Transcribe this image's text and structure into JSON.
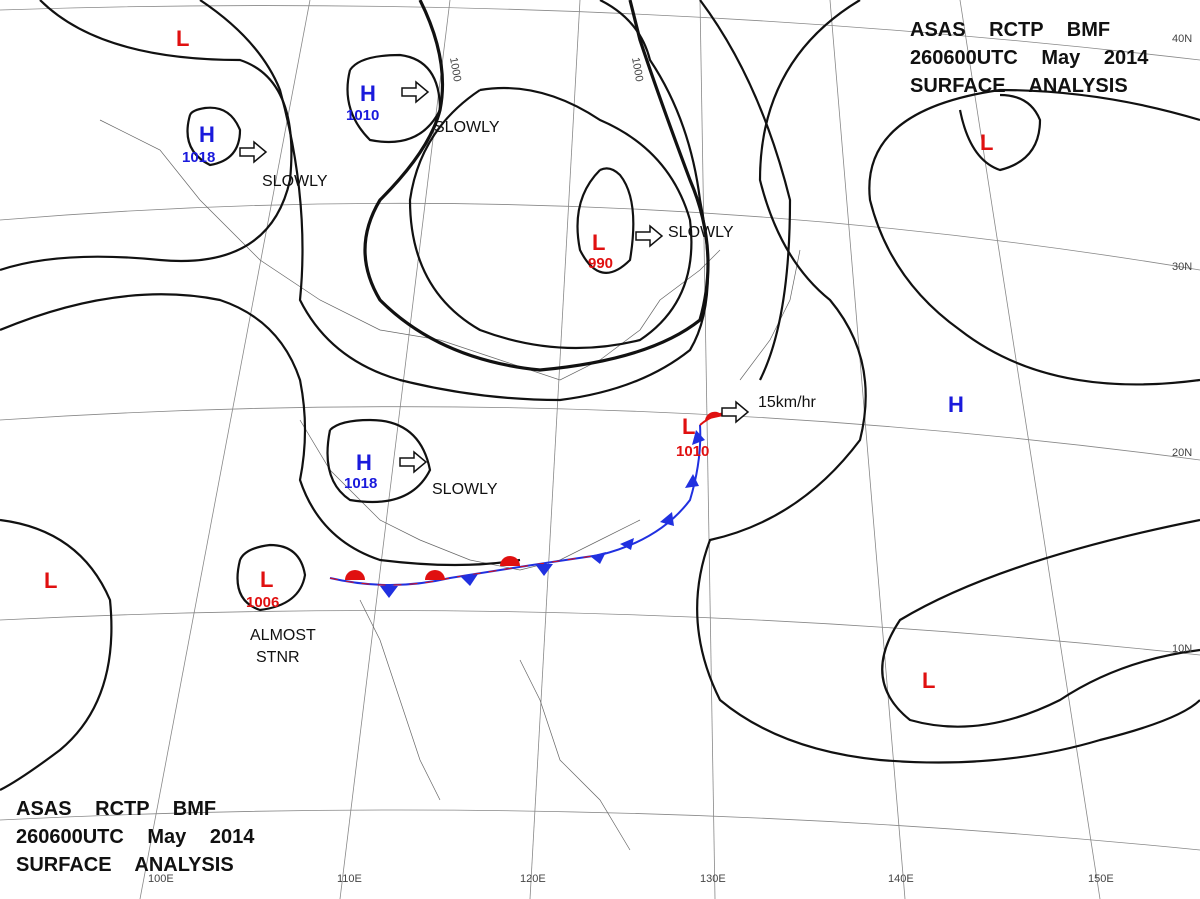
{
  "header": {
    "lines": [
      "ASAS RCTP BMF",
      "260600UTC May 2014",
      "SURFACE ANALYSIS"
    ]
  },
  "pressure_centers": [
    {
      "type": "L"
    },
    {
      "type": "H",
      "value": "1010"
    },
    {
      "type": "H",
      "value": "1018"
    },
    {
      "type": "L",
      "value": "990"
    },
    {
      "type": "L"
    },
    {
      "type": "H"
    },
    {
      "type": "L",
      "value": "1010"
    },
    {
      "type": "H",
      "value": "1018"
    },
    {
      "type": "L",
      "value": "1006"
    },
    {
      "type": "L"
    },
    {
      "type": "L"
    }
  ],
  "movements": [
    "SLOWLY",
    "SLOWLY",
    "SLOWLY",
    "SLOWLY",
    "15km/hr",
    "ALMOST",
    "STNR"
  ],
  "isobar_labels": [
    "1000",
    "1000"
  ],
  "longitudes": [
    "100E",
    "110E",
    "120E",
    "130E",
    "140E",
    "150E"
  ],
  "latitudes": [
    "40N",
    "30N",
    "20N",
    "10N"
  ]
}
